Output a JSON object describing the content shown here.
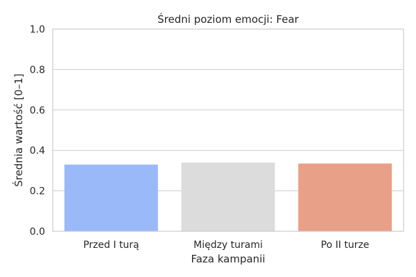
{
  "chart_data": {
    "type": "bar",
    "title": "Średni poziom emocji: Fear",
    "xlabel": "Faza kampanii",
    "ylabel": "Średnia wartość [0–1]",
    "categories": [
      "Przed I turą",
      "Między turami",
      "Po II turze"
    ],
    "values": [
      0.33,
      0.34,
      0.335
    ],
    "ylim": [
      0,
      1
    ],
    "yticks": [
      "0.0",
      "0.2",
      "0.4",
      "0.6",
      "0.8",
      "1.0"
    ],
    "bar_colors": [
      "#9ab9f9",
      "#dcdcdc",
      "#e8a088"
    ],
    "grid": "horizontal",
    "legend": "none"
  }
}
